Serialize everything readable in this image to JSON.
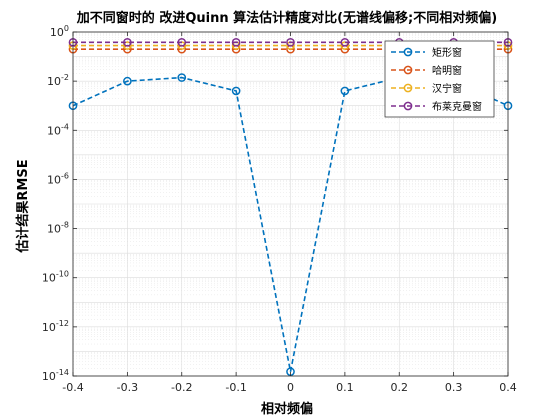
{
  "chart_data": {
    "type": "line",
    "title": "加不同窗时的 改进Quinn 算法估计精度对比(无谱线偏移;不同相对频偏)",
    "xlabel": "相对频偏",
    "ylabel": "估计结果RMSE",
    "x": [
      -0.4,
      -0.3,
      -0.2,
      -0.1,
      0.0,
      0.1,
      0.2,
      0.3,
      0.4
    ],
    "xlim": [
      -0.4,
      0.4
    ],
    "xticks": [
      "-0.4",
      "-0.3",
      "-0.2",
      "-0.1",
      "0",
      "0.1",
      "0.2",
      "0.3",
      "0.4"
    ],
    "yscale": "log",
    "ylim_exp": [
      -14,
      0
    ],
    "yticks_exp": [
      0,
      -2,
      -4,
      -6,
      -8,
      -10,
      -12,
      -14
    ],
    "ytick_base": "10",
    "grid": true,
    "legend_location": "top-right",
    "series": [
      {
        "name": "矩形窗",
        "color": "#0072BD",
        "values": [
          0.001,
          0.01,
          0.014,
          0.004,
          1.5e-14,
          0.004,
          0.014,
          0.01,
          0.001
        ]
      },
      {
        "name": "哈明窗",
        "color": "#D95319",
        "values": [
          0.2,
          0.2,
          0.2,
          0.2,
          0.2,
          0.2,
          0.2,
          0.2,
          0.2
        ]
      },
      {
        "name": "汉宁窗",
        "color": "#EDB120",
        "values": [
          0.28,
          0.28,
          0.28,
          0.28,
          0.28,
          0.28,
          0.28,
          0.28,
          0.28
        ]
      },
      {
        "name": "布莱克曼窗",
        "color": "#7E2F8E",
        "values": [
          0.38,
          0.38,
          0.38,
          0.38,
          0.38,
          0.38,
          0.38,
          0.38,
          0.38
        ]
      }
    ]
  }
}
